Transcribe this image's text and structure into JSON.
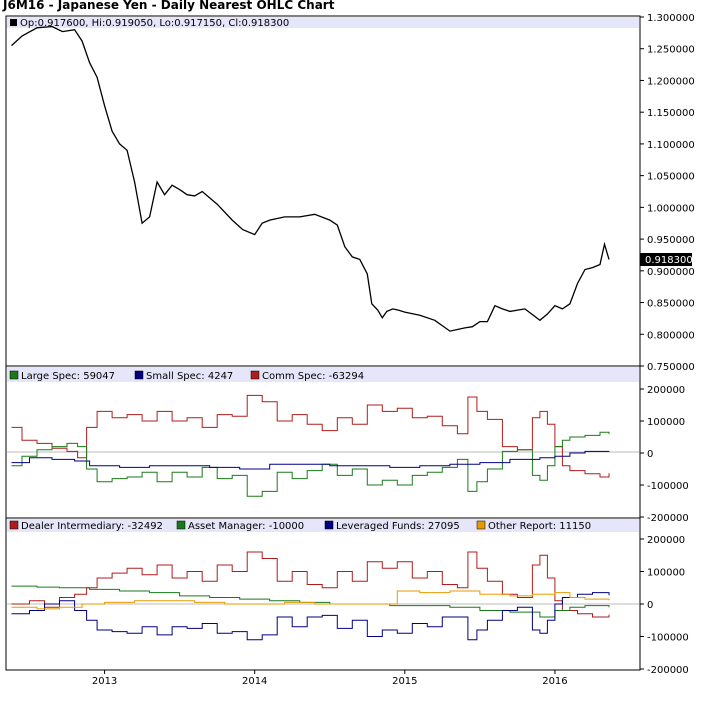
{
  "chart_data": [
    {
      "type": "line",
      "subtype": "ohlc",
      "title": "J6M16 - Japanese Yen - Daily Nearest OHLC Chart",
      "legend_text": "Op:0.917600, Hi:0.919050, Lo:0.917150, Cl:0.918300",
      "last_value_label": "0.918300",
      "ylim": [
        0.75,
        1.3
      ],
      "y_ticks": [
        "1.300000",
        "1.250000",
        "1.200000",
        "1.150000",
        "1.100000",
        "1.050000",
        "1.000000",
        "0.950000",
        "0.900000",
        "0.850000",
        "0.800000",
        "0.750000"
      ],
      "x_ticks": [
        "2013",
        "2014",
        "2015",
        "2016"
      ],
      "series": [
        {
          "color": "#000000",
          "x": [
            2012.38,
            2012.45,
            2012.55,
            2012.65,
            2012.72,
            2012.8,
            2012.85,
            2012.9,
            2012.95,
            2013.0,
            2013.05,
            2013.1,
            2013.15,
            2013.2,
            2013.25,
            2013.3,
            2013.35,
            2013.4,
            2013.45,
            2013.5,
            2013.55,
            2013.6,
            2013.65,
            2013.75,
            2013.85,
            2013.92,
            2014.0,
            2014.05,
            2014.1,
            2014.2,
            2014.3,
            2014.4,
            2014.5,
            2014.55,
            2014.6,
            2014.65,
            2014.7,
            2014.75,
            2014.78,
            2014.82,
            2014.85,
            2014.88,
            2014.92,
            2014.96,
            2015.0,
            2015.1,
            2015.2,
            2015.3,
            2015.4,
            2015.45,
            2015.5,
            2015.55,
            2015.6,
            2015.65,
            2015.7,
            2015.8,
            2015.9,
            2015.95,
            2016.0,
            2016.05,
            2016.1,
            2016.15,
            2016.2,
            2016.25,
            2016.3,
            2016.33,
            2016.36
          ],
          "values": [
            1.255,
            1.27,
            1.283,
            1.285,
            1.277,
            1.28,
            1.262,
            1.228,
            1.205,
            1.16,
            1.12,
            1.1,
            1.09,
            1.04,
            0.975,
            0.985,
            1.04,
            1.02,
            1.035,
            1.028,
            1.02,
            1.018,
            1.025,
            1.005,
            0.98,
            0.965,
            0.957,
            0.975,
            0.98,
            0.985,
            0.985,
            0.989,
            0.98,
            0.972,
            0.938,
            0.922,
            0.918,
            0.895,
            0.848,
            0.838,
            0.826,
            0.836,
            0.84,
            0.838,
            0.835,
            0.83,
            0.822,
            0.805,
            0.81,
            0.812,
            0.82,
            0.82,
            0.845,
            0.84,
            0.836,
            0.84,
            0.822,
            0.832,
            0.845,
            0.84,
            0.848,
            0.88,
            0.902,
            0.905,
            0.91,
            0.942,
            0.918
          ]
        }
      ]
    },
    {
      "type": "line",
      "title": "",
      "ylim": [
        -200000,
        200000
      ],
      "y_ticks": [
        "200000",
        "100000",
        "0",
        "-100000",
        "-200000"
      ],
      "x_ticks": [
        "2013",
        "2014",
        "2015",
        "2016"
      ],
      "legend": [
        {
          "label": "Large Spec: 59047",
          "color": "#1a7a1a"
        },
        {
          "label": "Small Spec: 4247",
          "color": "#000080"
        },
        {
          "label": "Comm Spec: -63294",
          "color": "#b01c1c"
        }
      ],
      "series": [
        {
          "color": "#b01c1c",
          "x": [
            2012.38,
            2012.45,
            2012.55,
            2012.65,
            2012.75,
            2012.82,
            2012.88,
            2012.95,
            2013.05,
            2013.15,
            2013.25,
            2013.35,
            2013.45,
            2013.55,
            2013.65,
            2013.75,
            2013.85,
            2013.95,
            2014.05,
            2014.15,
            2014.25,
            2014.35,
            2014.45,
            2014.55,
            2014.65,
            2014.75,
            2014.85,
            2014.95,
            2015.05,
            2015.15,
            2015.25,
            2015.35,
            2015.42,
            2015.48,
            2015.55,
            2015.65,
            2015.75,
            2015.85,
            2015.9,
            2015.95,
            2016.0,
            2016.05,
            2016.1,
            2016.2,
            2016.3,
            2016.36
          ],
          "values": [
            80000,
            40000,
            30000,
            15000,
            5000,
            -15000,
            80000,
            130000,
            110000,
            120000,
            100000,
            130000,
            100000,
            110000,
            80000,
            120000,
            115000,
            180000,
            160000,
            100000,
            120000,
            90000,
            70000,
            110000,
            90000,
            150000,
            130000,
            140000,
            110000,
            115000,
            85000,
            60000,
            175000,
            130000,
            105000,
            20000,
            10000,
            110000,
            130000,
            90000,
            20000,
            -40000,
            -55000,
            -65000,
            -75000,
            -63294
          ]
        },
        {
          "color": "#1a7a1a",
          "x": [
            2012.38,
            2012.45,
            2012.55,
            2012.65,
            2012.75,
            2012.82,
            2012.88,
            2012.95,
            2013.05,
            2013.15,
            2013.25,
            2013.35,
            2013.45,
            2013.55,
            2013.65,
            2013.75,
            2013.85,
            2013.95,
            2014.05,
            2014.15,
            2014.25,
            2014.35,
            2014.45,
            2014.55,
            2014.65,
            2014.75,
            2014.85,
            2014.95,
            2015.05,
            2015.15,
            2015.25,
            2015.35,
            2015.42,
            2015.48,
            2015.55,
            2015.65,
            2015.75,
            2015.85,
            2015.9,
            2015.95,
            2016.0,
            2016.05,
            2016.1,
            2016.2,
            2016.3,
            2016.36
          ],
          "values": [
            -40000,
            -10000,
            10000,
            20000,
            30000,
            20000,
            -50000,
            -90000,
            -80000,
            -75000,
            -60000,
            -90000,
            -60000,
            -75000,
            -45000,
            -80000,
            -70000,
            -135000,
            -120000,
            -60000,
            -80000,
            -55000,
            -35000,
            -70000,
            -50000,
            -100000,
            -85000,
            -100000,
            -70000,
            -60000,
            -45000,
            -20000,
            -120000,
            -90000,
            -50000,
            5000,
            10000,
            -70000,
            -85000,
            -40000,
            20000,
            40000,
            50000,
            55000,
            65000,
            59047
          ]
        },
        {
          "color": "#000080",
          "x": [
            2012.38,
            2012.5,
            2012.65,
            2012.8,
            2012.9,
            2013.1,
            2013.3,
            2013.5,
            2013.7,
            2013.9,
            2014.1,
            2014.3,
            2014.5,
            2014.7,
            2014.9,
            2015.1,
            2015.3,
            2015.5,
            2015.7,
            2015.9,
            2016.0,
            2016.1,
            2016.2,
            2016.36
          ],
          "values": [
            -30000,
            -15000,
            -20000,
            -25000,
            -40000,
            -45000,
            -40000,
            -40000,
            -45000,
            -50000,
            -35000,
            -35000,
            -40000,
            -40000,
            -45000,
            -40000,
            -35000,
            -30000,
            -20000,
            -15000,
            -10000,
            0,
            5000,
            4247
          ]
        }
      ]
    },
    {
      "type": "line",
      "title": "",
      "ylim": [
        -200000,
        200000
      ],
      "y_ticks": [
        "200000",
        "100000",
        "0",
        "-100000",
        "-200000"
      ],
      "x_ticks": [
        "2013",
        "2014",
        "2015",
        "2016"
      ],
      "legend": [
        {
          "label": "Dealer Intermediary: -32492",
          "color": "#b01c1c"
        },
        {
          "label": "Asset Manager: -10000",
          "color": "#1a7a1a"
        },
        {
          "label": "Leveraged Funds: 27095",
          "color": "#000080"
        },
        {
          "label": "Other Report: 11150",
          "color": "#e59b00"
        }
      ],
      "series": [
        {
          "color": "#b01c1c",
          "x": [
            2012.38,
            2012.5,
            2012.6,
            2012.7,
            2012.8,
            2012.88,
            2012.95,
            2013.05,
            2013.15,
            2013.25,
            2013.35,
            2013.45,
            2013.55,
            2013.65,
            2013.75,
            2013.85,
            2013.95,
            2014.05,
            2014.15,
            2014.25,
            2014.35,
            2014.45,
            2014.55,
            2014.65,
            2014.75,
            2014.85,
            2014.95,
            2015.05,
            2015.15,
            2015.25,
            2015.35,
            2015.42,
            2015.48,
            2015.55,
            2015.65,
            2015.75,
            2015.85,
            2015.9,
            2015.95,
            2016.0,
            2016.05,
            2016.15,
            2016.25,
            2016.36
          ],
          "values": [
            0,
            10000,
            -10000,
            20000,
            30000,
            50000,
            80000,
            95000,
            110000,
            90000,
            120000,
            80000,
            100000,
            70000,
            120000,
            100000,
            160000,
            140000,
            70000,
            100000,
            60000,
            50000,
            100000,
            70000,
            130000,
            110000,
            130000,
            80000,
            100000,
            60000,
            50000,
            160000,
            110000,
            70000,
            30000,
            20000,
            120000,
            150000,
            80000,
            10000,
            -20000,
            -30000,
            -40000,
            -32492
          ]
        },
        {
          "color": "#1a7a1a",
          "x": [
            2012.38,
            2012.55,
            2012.7,
            2012.9,
            2013.1,
            2013.3,
            2013.5,
            2013.7,
            2013.9,
            2014.1,
            2014.3,
            2014.5,
            2014.7,
            2014.9,
            2015.1,
            2015.3,
            2015.5,
            2015.7,
            2015.9,
            2016.0,
            2016.1,
            2016.2,
            2016.36
          ],
          "values": [
            55000,
            52000,
            50000,
            45000,
            40000,
            35000,
            25000,
            20000,
            15000,
            10000,
            5000,
            0,
            0,
            -5000,
            -5000,
            -10000,
            -20000,
            -25000,
            -40000,
            -20000,
            -10000,
            -5000,
            -10000
          ]
        },
        {
          "color": "#000080",
          "x": [
            2012.38,
            2012.5,
            2012.6,
            2012.7,
            2012.8,
            2012.88,
            2012.95,
            2013.05,
            2013.15,
            2013.25,
            2013.35,
            2013.45,
            2013.55,
            2013.65,
            2013.75,
            2013.85,
            2013.95,
            2014.05,
            2014.15,
            2014.25,
            2014.35,
            2014.45,
            2014.55,
            2014.65,
            2014.75,
            2014.85,
            2014.95,
            2015.05,
            2015.15,
            2015.25,
            2015.35,
            2015.42,
            2015.48,
            2015.55,
            2015.65,
            2015.75,
            2015.85,
            2015.9,
            2015.95,
            2016.0,
            2016.05,
            2016.15,
            2016.25,
            2016.36
          ],
          "values": [
            -30000,
            -20000,
            0,
            10000,
            -20000,
            -50000,
            -80000,
            -85000,
            -90000,
            -70000,
            -95000,
            -70000,
            -75000,
            -60000,
            -90000,
            -85000,
            -110000,
            -95000,
            -40000,
            -70000,
            -40000,
            -35000,
            -75000,
            -50000,
            -100000,
            -80000,
            -90000,
            -60000,
            -70000,
            -40000,
            -40000,
            -110000,
            -80000,
            -50000,
            -20000,
            -10000,
            -80000,
            -90000,
            -50000,
            0,
            20000,
            30000,
            35000,
            27095
          ]
        },
        {
          "color": "#e59b00",
          "x": [
            2012.38,
            2012.55,
            2012.7,
            2012.85,
            2013.0,
            2013.2,
            2013.4,
            2013.6,
            2013.8,
            2014.0,
            2014.2,
            2014.4,
            2014.6,
            2014.8,
            2014.95,
            2015.1,
            2015.3,
            2015.5,
            2015.7,
            2015.85,
            2016.0,
            2016.1,
            2016.2,
            2016.36
          ],
          "values": [
            -10000,
            -15000,
            -10000,
            0,
            5000,
            10000,
            10000,
            5000,
            0,
            0,
            5000,
            0,
            0,
            0,
            40000,
            35000,
            40000,
            30000,
            25000,
            30000,
            35000,
            20000,
            15000,
            11150
          ]
        }
      ]
    }
  ]
}
